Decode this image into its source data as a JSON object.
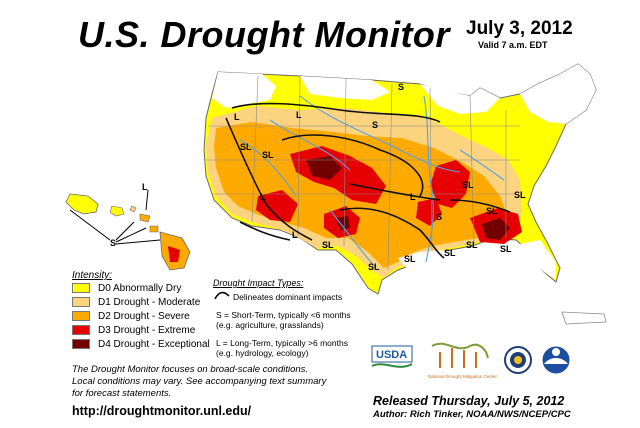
{
  "header": {
    "title": "U.S. Drought Monitor",
    "date": "July 3, 2012",
    "valid": "Valid 7 a.m. EDT"
  },
  "legend": {
    "heading": "Intensity:",
    "items": [
      {
        "label": "D0 Abnormally Dry",
        "color": "#ffff00"
      },
      {
        "label": "D1 Drought - Moderate",
        "color": "#fcd37f"
      },
      {
        "label": "D2 Drought - Severe",
        "color": "#ffaa00"
      },
      {
        "label": "D3 Drought - Extreme",
        "color": "#e60000"
      },
      {
        "label": "D4 Drought - Exceptional",
        "color": "#730000"
      }
    ]
  },
  "impact": {
    "heading": "Drought Impact Types:",
    "delineates": "Delineates dominant impacts",
    "short_line1": "S = Short-Term, typically <6 months",
    "short_line2": "(e.g. agriculture, grasslands)",
    "long_line1": "L = Long-Term, typically >6 months",
    "long_line2": "(e.g. hydrology, ecology)"
  },
  "map_labels": {
    "hawaii_s": "S",
    "hawaii_l": "L",
    "regions": [
      "S",
      "L",
      "SL",
      "SL",
      "L",
      "L",
      "L",
      "S",
      "SL",
      "SL",
      "SL",
      "S",
      "SL",
      "SL",
      "SL",
      "SL",
      "SL",
      "SL",
      "L"
    ]
  },
  "note": {
    "line1": "The Drought Monitor focuses on broad-scale conditions.",
    "line2": "Local conditions may vary. See accompanying text summary",
    "line3": "for forecast statements."
  },
  "url": "http://droughtmonitor.unl.edu/",
  "logos": {
    "usda": "USDA",
    "ndmc": "National Drought Mitigation Center"
  },
  "footer": {
    "released": "Released Thursday, July 5, 2012",
    "author": "Author: Rich Tinker, NOAA/NWS/NCEP/CPC"
  }
}
